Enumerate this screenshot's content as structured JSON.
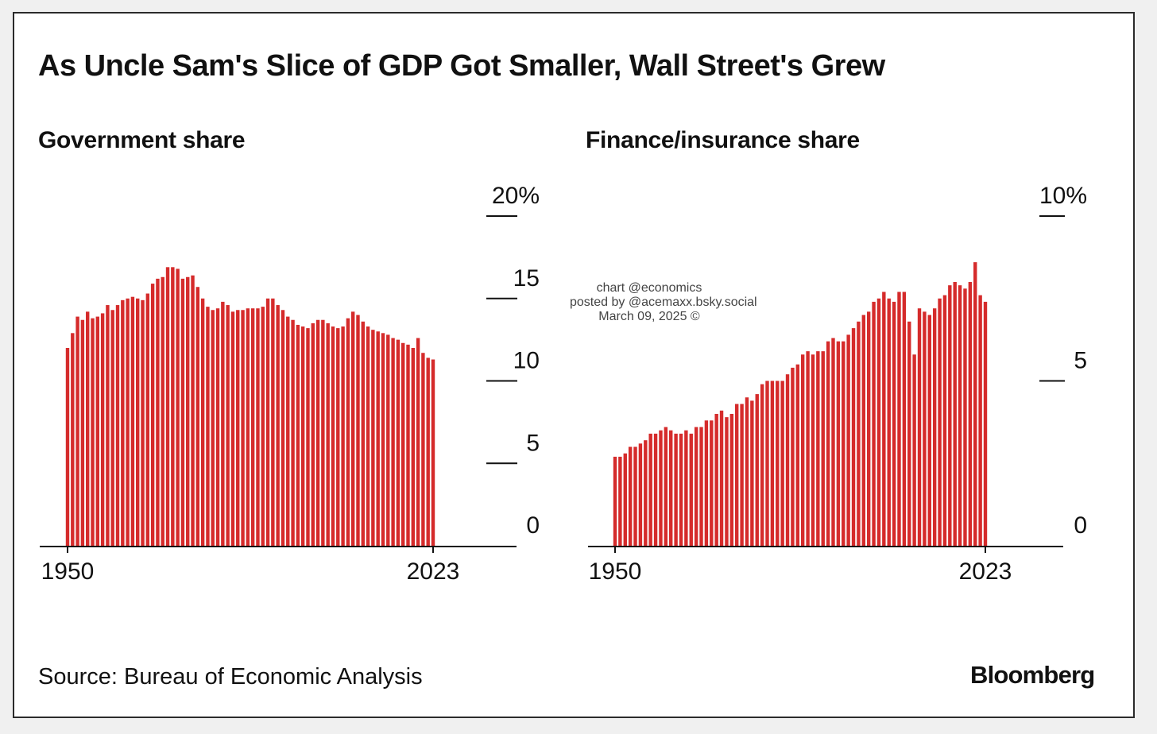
{
  "title": "As Uncle Sam's Slice of GDP Got Smaller, Wall Street's Grew",
  "watermark": {
    "line1": "chart @economics",
    "line2": "posted by @acemaxx.bsky.social",
    "line3": "March 09, 2025 ©"
  },
  "source": "Source: Bureau of Economic Analysis",
  "brand": "Bloomberg",
  "colors": {
    "bar": "#d52b2b",
    "axis": "#111111",
    "background": "#ffffff"
  },
  "chart_data": [
    {
      "type": "bar",
      "title": "Government share",
      "x_start": 1950,
      "x_end": 2023,
      "x_tick_labels": [
        "1950",
        "2023"
      ],
      "y_ticks": [
        0,
        5,
        10,
        15,
        20
      ],
      "y_tick_labels": [
        "0",
        "5",
        "10",
        "15",
        "20%"
      ],
      "ylim": [
        0,
        20
      ],
      "grid": false,
      "values": [
        12.0,
        12.9,
        13.9,
        13.7,
        14.2,
        13.8,
        13.9,
        14.1,
        14.6,
        14.3,
        14.6,
        14.9,
        15.0,
        15.1,
        15.0,
        14.9,
        15.3,
        15.9,
        16.2,
        16.3,
        16.9,
        16.9,
        16.8,
        16.2,
        16.3,
        16.4,
        15.7,
        15.0,
        14.5,
        14.3,
        14.4,
        14.8,
        14.6,
        14.2,
        14.3,
        14.3,
        14.4,
        14.4,
        14.4,
        14.5,
        15.0,
        15.0,
        14.6,
        14.3,
        13.9,
        13.7,
        13.4,
        13.3,
        13.2,
        13.5,
        13.7,
        13.7,
        13.5,
        13.3,
        13.2,
        13.3,
        13.8,
        14.2,
        14.0,
        13.6,
        13.3,
        13.1,
        13.0,
        12.9,
        12.8,
        12.6,
        12.5,
        12.3,
        12.2,
        12.0,
        12.6,
        11.7,
        11.4,
        11.3
      ]
    },
    {
      "type": "bar",
      "title": "Finance/insurance share",
      "x_start": 1950,
      "x_end": 2023,
      "x_tick_labels": [
        "1950",
        "2023"
      ],
      "y_ticks": [
        0,
        5,
        10
      ],
      "y_tick_labels": [
        "0",
        "5",
        "10%"
      ],
      "ylim": [
        0,
        10
      ],
      "grid": false,
      "values": [
        2.7,
        2.7,
        2.8,
        3.0,
        3.0,
        3.1,
        3.2,
        3.4,
        3.4,
        3.5,
        3.6,
        3.5,
        3.4,
        3.4,
        3.5,
        3.4,
        3.6,
        3.6,
        3.8,
        3.8,
        4.0,
        4.1,
        3.9,
        4.0,
        4.3,
        4.3,
        4.5,
        4.4,
        4.6,
        4.9,
        5.0,
        5.0,
        5.0,
        5.0,
        5.2,
        5.4,
        5.5,
        5.8,
        5.9,
        5.8,
        5.9,
        5.9,
        6.2,
        6.3,
        6.2,
        6.2,
        6.4,
        6.6,
        6.8,
        7.0,
        7.1,
        7.4,
        7.5,
        7.7,
        7.5,
        7.4,
        7.7,
        7.7,
        6.8,
        5.8,
        7.2,
        7.1,
        7.0,
        7.2,
        7.5,
        7.6,
        7.9,
        8.0,
        7.9,
        7.8,
        8.0,
        8.6,
        7.6,
        7.4
      ]
    }
  ]
}
